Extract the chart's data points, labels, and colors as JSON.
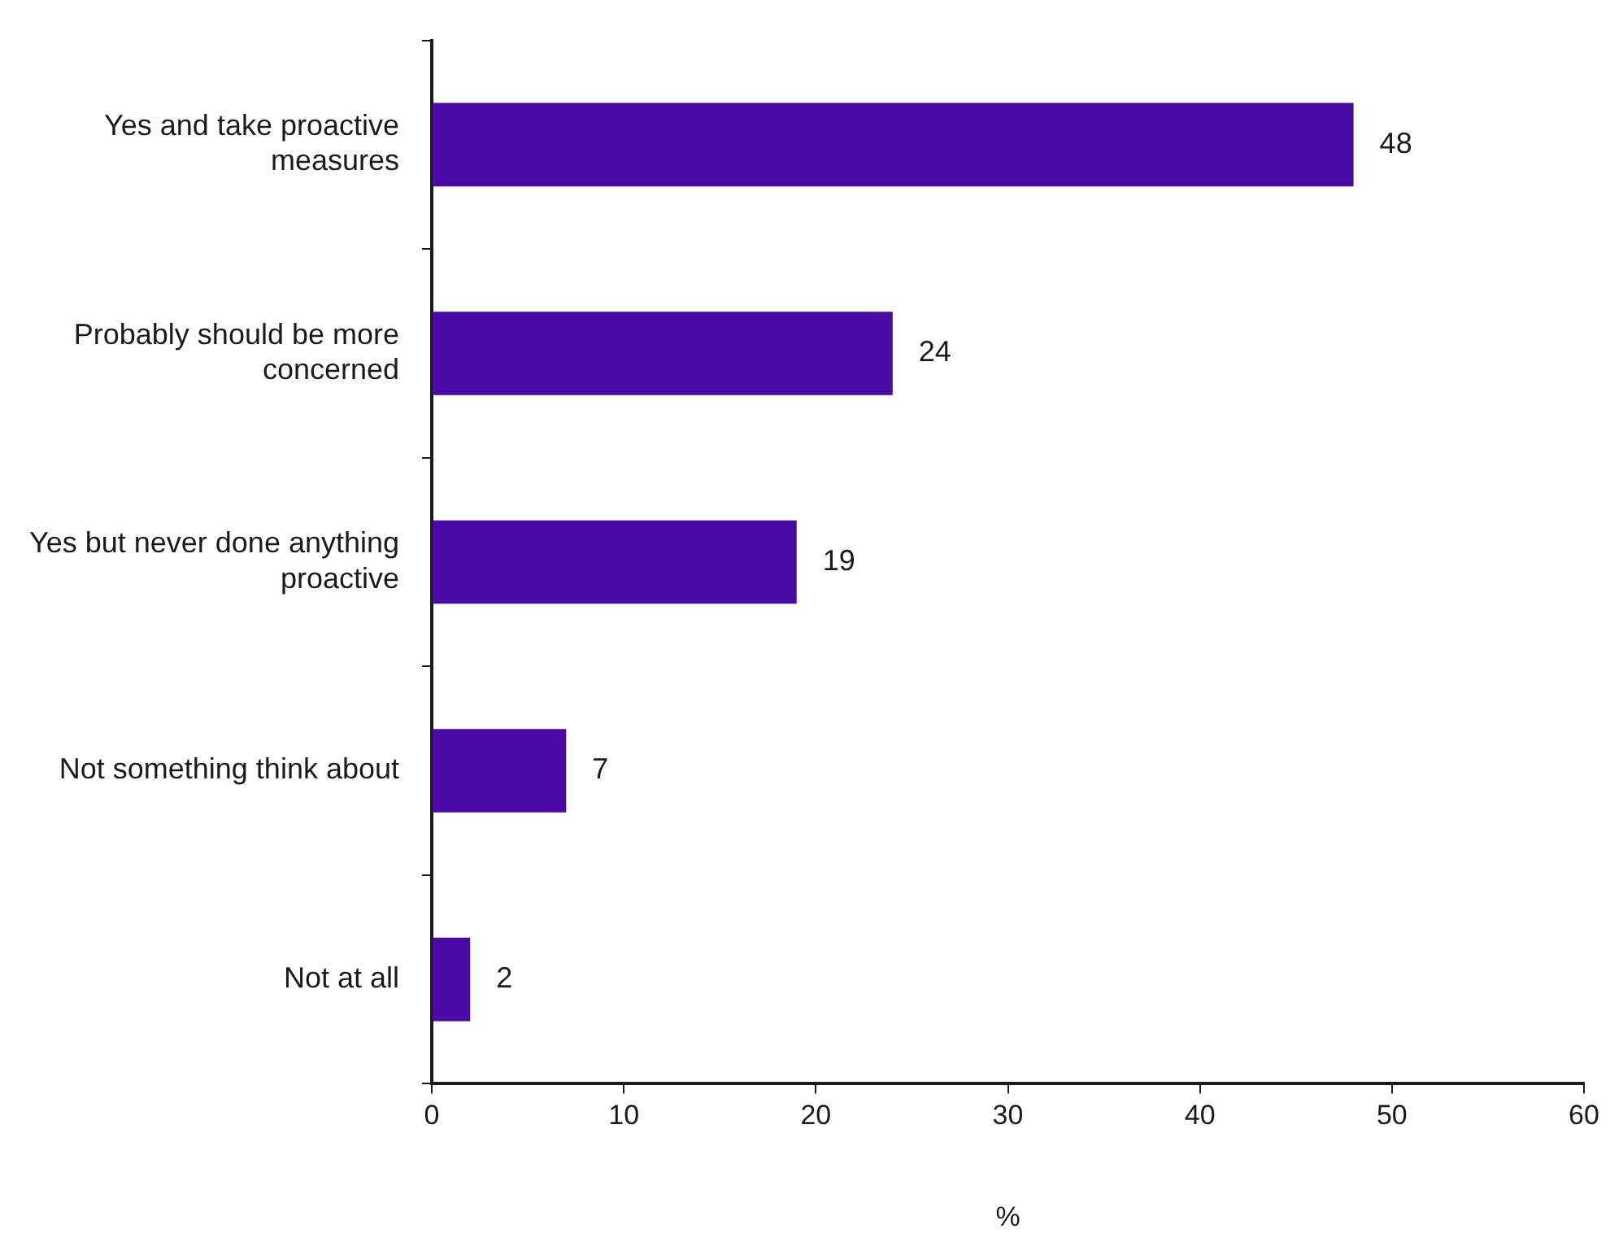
{
  "chart_data": {
    "type": "bar",
    "orientation": "horizontal",
    "xlabel": "%",
    "categories": [
      "Yes and take proactive measures",
      "Probably should be more concerned",
      "Yes but never done anything proactive",
      "Not something think about",
      "Not at all"
    ],
    "values": [
      48,
      24,
      19,
      7,
      2
    ],
    "color": "#4b0aa6",
    "xlim": [
      0,
      60
    ],
    "xticks": [
      0,
      10,
      20,
      30,
      40,
      50,
      60
    ],
    "grid": false,
    "legend": false,
    "data_labels": true
  }
}
